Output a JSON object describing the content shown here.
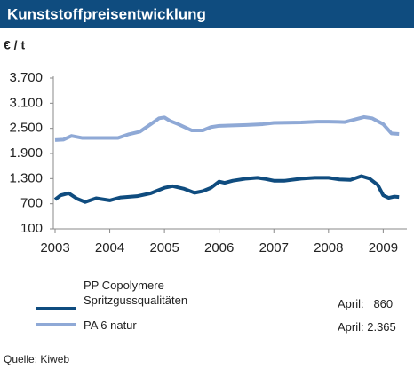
{
  "chart_data": {
    "type": "line",
    "title": "Kunststoffpreisentwicklung",
    "y_unit": "€ / t",
    "source": "Quelle: Kiweb",
    "xlim": [
      2003,
      2009.4
    ],
    "xticks": [
      2003,
      2004,
      2005,
      2006,
      2007,
      2008,
      2009
    ],
    "ylim": [
      100,
      3700
    ],
    "yticks": [
      {
        "value": 3700,
        "label": "3.700"
      },
      {
        "value": 3100,
        "label": "3.100"
      },
      {
        "value": 2500,
        "label": "2.500"
      },
      {
        "value": 1900,
        "label": "1.900"
      },
      {
        "value": 1300,
        "label": "1.300"
      },
      700,
      100
    ],
    "grid": false,
    "series": [
      {
        "name": "PP Copolymere Spritzgussqualitäten",
        "color": "#0f4c7f",
        "x": [
          2003,
          2003.1,
          2003.25,
          2003.4,
          2003.55,
          2003.75,
          2004,
          2004.2,
          2004.5,
          2004.75,
          2005,
          2005.15,
          2005.35,
          2005.55,
          2005.7,
          2005.85,
          2006,
          2006.1,
          2006.25,
          2006.5,
          2006.7,
          2006.85,
          2007,
          2007.2,
          2007.5,
          2007.75,
          2008,
          2008.2,
          2008.4,
          2008.6,
          2008.75,
          2008.9,
          2009,
          2009.1,
          2009.2,
          2009.29
        ],
        "values": [
          800,
          900,
          950,
          820,
          740,
          830,
          780,
          850,
          880,
          950,
          1080,
          1120,
          1060,
          960,
          1000,
          1080,
          1230,
          1200,
          1250,
          1300,
          1320,
          1290,
          1250,
          1250,
          1300,
          1320,
          1320,
          1280,
          1270,
          1360,
          1300,
          1150,
          900,
          840,
          870,
          860
        ]
      },
      {
        "name": "PA 6 natur",
        "color": "#8fa9d6",
        "x": [
          2003,
          2003.15,
          2003.3,
          2003.5,
          2003.75,
          2004,
          2004.15,
          2004.35,
          2004.55,
          2004.75,
          2004.9,
          2005,
          2005.1,
          2005.25,
          2005.5,
          2005.7,
          2005.85,
          2006,
          2006.5,
          2006.8,
          2007,
          2007.5,
          2007.8,
          2008,
          2008.3,
          2008.5,
          2008.65,
          2008.8,
          2009,
          2009.15,
          2009.29
        ],
        "values": [
          2220,
          2230,
          2320,
          2270,
          2270,
          2270,
          2270,
          2360,
          2420,
          2600,
          2740,
          2760,
          2680,
          2600,
          2450,
          2450,
          2530,
          2560,
          2580,
          2600,
          2630,
          2640,
          2660,
          2660,
          2650,
          2720,
          2770,
          2740,
          2600,
          2380,
          2365
        ]
      }
    ],
    "annotations": [
      "April:   860",
      "April: 2.365"
    ]
  }
}
